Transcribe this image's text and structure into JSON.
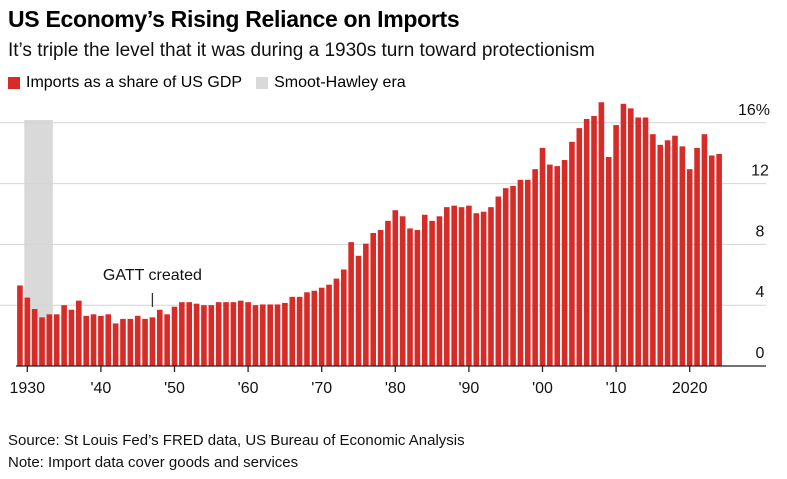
{
  "title": "US Economy’s Rising Reliance on Imports",
  "subtitle": "It’s triple the level that it was during a 1930s turn toward protectionism",
  "legend": [
    {
      "label": "Imports as a share of US GDP",
      "color": "#d62b27"
    },
    {
      "label": "Smoot-Hawley era",
      "color": "#d9d9d9"
    }
  ],
  "source": "Source: St Louis Fed’s FRED data, US Bureau of Economic Analysis",
  "note": "Note: Import data cover goods and services",
  "chart_data": {
    "type": "bar",
    "title": "US Economy’s Rising Reliance on Imports",
    "ylabel": "Imports as a share of US GDP (%)",
    "ylim": [
      0,
      16
    ],
    "yticks": [
      {
        "v": 0,
        "label": "0"
      },
      {
        "v": 4,
        "label": "4"
      },
      {
        "v": 8,
        "label": "8"
      },
      {
        "v": 12,
        "label": "12"
      },
      {
        "v": 16,
        "label": "16%"
      }
    ],
    "xticks": [
      {
        "v": 1930,
        "label": "1930"
      },
      {
        "v": 1940,
        "label": "'40"
      },
      {
        "v": 1950,
        "label": "'50"
      },
      {
        "v": 1960,
        "label": "'60"
      },
      {
        "v": 1970,
        "label": "'70"
      },
      {
        "v": 1980,
        "label": "'80"
      },
      {
        "v": 1990,
        "label": "'90"
      },
      {
        "v": 2000,
        "label": "'00"
      },
      {
        "v": 2010,
        "label": "'10"
      },
      {
        "v": 2020,
        "label": "2020"
      }
    ],
    "start_year": 1929,
    "values": [
      5.3,
      4.5,
      3.75,
      3.2,
      3.4,
      3.4,
      4.0,
      3.7,
      4.3,
      3.3,
      3.4,
      3.3,
      3.4,
      2.8,
      3.1,
      3.1,
      3.3,
      3.1,
      3.2,
      3.7,
      3.4,
      3.9,
      4.2,
      4.2,
      4.1,
      4.0,
      4.0,
      4.2,
      4.2,
      4.2,
      4.3,
      4.2,
      4.0,
      4.05,
      4.05,
      4.05,
      4.15,
      4.55,
      4.55,
      4.85,
      4.95,
      5.15,
      5.35,
      5.75,
      6.35,
      8.15,
      7.25,
      8.05,
      8.75,
      8.95,
      9.55,
      10.25,
      9.85,
      9.05,
      8.95,
      9.95,
      9.55,
      9.85,
      10.45,
      10.55,
      10.45,
      10.55,
      10.05,
      10.15,
      10.45,
      11.15,
      11.7,
      11.85,
      12.25,
      12.25,
      12.95,
      14.35,
      13.25,
      13.15,
      13.55,
      14.75,
      15.65,
      16.25,
      16.45,
      17.35,
      13.75,
      15.85,
      17.25,
      16.95,
      16.35,
      16.35,
      15.25,
      14.55,
      14.85,
      15.15,
      14.45,
      12.95,
      14.35,
      15.25,
      13.85,
      13.95
    ],
    "shaded_range": {
      "label": "Smoot-Hawley era",
      "from": 1930,
      "to": 1933
    },
    "annotations": [
      {
        "year": 1947,
        "text": "GATT created"
      }
    ]
  }
}
